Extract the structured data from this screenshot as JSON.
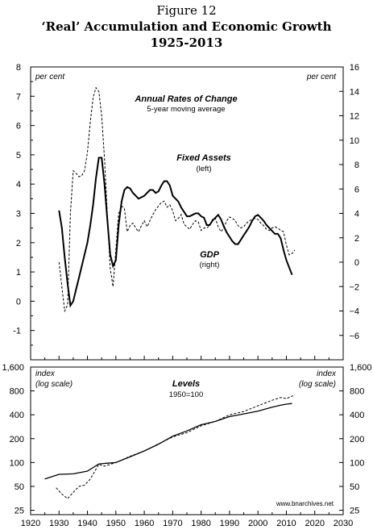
{
  "figure": {
    "label": "Figure 12",
    "title": "‘Real’ Accumulation and Economic Growth",
    "years": "1925-2013"
  },
  "chart_data": [
    {
      "type": "line",
      "title": "Annual Rates of Change",
      "subtitle": "5-year moving average",
      "left_axis_label": "per cent",
      "right_axis_label": "per cent",
      "left_ylim": [
        -2,
        8
      ],
      "right_ylim": [
        -8,
        16
      ],
      "left_ticks": [
        -1,
        0,
        1,
        2,
        3,
        4,
        5,
        6,
        7,
        8
      ],
      "right_ticks": [
        -6,
        -4,
        -2,
        0,
        2,
        4,
        6,
        8,
        10,
        12,
        14,
        16
      ],
      "xlim": [
        1920,
        2030
      ],
      "series": [
        {
          "name": "Fixed Assets",
          "name_sub": "(left)",
          "axis": "left",
          "style": "solid",
          "x": [
            1930,
            1931,
            1932,
            1933,
            1934,
            1935,
            1936,
            1937,
            1938,
            1939,
            1940,
            1941,
            1942,
            1943,
            1944,
            1945,
            1946,
            1947,
            1948,
            1949,
            1950,
            1951,
            1952,
            1953,
            1954,
            1955,
            1956,
            1957,
            1958,
            1959,
            1960,
            1961,
            1962,
            1963,
            1964,
            1965,
            1966,
            1967,
            1968,
            1969,
            1970,
            1971,
            1972,
            1973,
            1974,
            1975,
            1976,
            1977,
            1978,
            1979,
            1980,
            1981,
            1982,
            1983,
            1984,
            1985,
            1986,
            1987,
            1988,
            1989,
            1990,
            1991,
            1992,
            1993,
            1994,
            1995,
            1996,
            1997,
            1998,
            1999,
            2000,
            2001,
            2002,
            2003,
            2004,
            2005,
            2006,
            2007,
            2008,
            2009,
            2010,
            2011,
            2012
          ],
          "y": [
            3.1,
            2.5,
            1.5,
            0.6,
            -0.15,
            0.0,
            0.4,
            0.8,
            1.2,
            1.6,
            2.0,
            2.6,
            3.3,
            4.2,
            4.9,
            4.9,
            4.0,
            2.8,
            1.6,
            1.2,
            1.4,
            2.6,
            3.4,
            3.8,
            3.9,
            3.85,
            3.7,
            3.6,
            3.5,
            3.55,
            3.6,
            3.7,
            3.8,
            3.8,
            3.7,
            3.75,
            3.95,
            4.1,
            4.1,
            3.95,
            3.6,
            3.5,
            3.4,
            3.2,
            3.05,
            2.9,
            2.9,
            2.95,
            3.0,
            3.0,
            2.9,
            2.85,
            2.6,
            2.6,
            2.75,
            2.85,
            2.95,
            2.8,
            2.55,
            2.35,
            2.2,
            2.05,
            1.95,
            1.95,
            2.1,
            2.25,
            2.4,
            2.55,
            2.75,
            2.9,
            2.95,
            2.85,
            2.75,
            2.6,
            2.5,
            2.4,
            2.3,
            2.3,
            2.15,
            1.75,
            1.4,
            1.15,
            0.9
          ]
        },
        {
          "name": "GDP",
          "name_sub": "(right)",
          "axis": "right",
          "style": "dashed",
          "x": [
            1930,
            1931,
            1932,
            1933,
            1934,
            1935,
            1936,
            1937,
            1938,
            1939,
            1940,
            1941,
            1942,
            1943,
            1944,
            1945,
            1946,
            1947,
            1948,
            1949,
            1950,
            1951,
            1952,
            1953,
            1954,
            1955,
            1956,
            1957,
            1958,
            1959,
            1960,
            1961,
            1962,
            1963,
            1964,
            1965,
            1966,
            1967,
            1968,
            1969,
            1970,
            1971,
            1972,
            1973,
            1974,
            1975,
            1976,
            1977,
            1978,
            1979,
            1980,
            1981,
            1982,
            1983,
            1984,
            1985,
            1986,
            1987,
            1988,
            1989,
            1990,
            1991,
            1992,
            1993,
            1994,
            1995,
            1996,
            1997,
            1998,
            1999,
            2000,
            2001,
            2002,
            2003,
            2004,
            2005,
            2006,
            2007,
            2008,
            2009,
            2010,
            2011,
            2012,
            2013
          ],
          "y": [
            0.0,
            -2.0,
            -4.0,
            -3.5,
            4.0,
            7.5,
            7.3,
            7.0,
            7.1,
            7.5,
            9.0,
            11.5,
            13.5,
            14.3,
            14.0,
            12.0,
            8.5,
            4.0,
            -0.5,
            -2.0,
            1.0,
            4.0,
            4.6,
            4.4,
            2.5,
            3.0,
            3.2,
            2.8,
            2.5,
            3.0,
            3.4,
            2.9,
            3.4,
            3.9,
            4.3,
            4.6,
            4.9,
            5.0,
            4.5,
            4.7,
            4.2,
            3.4,
            3.6,
            3.9,
            3.1,
            2.9,
            2.7,
            3.1,
            3.4,
            3.3,
            2.6,
            2.8,
            2.8,
            3.0,
            3.5,
            3.6,
            2.9,
            2.5,
            2.8,
            3.4,
            3.7,
            3.6,
            3.4,
            3.0,
            2.8,
            2.9,
            3.2,
            3.4,
            3.5,
            3.6,
            3.5,
            3.2,
            3.0,
            2.7,
            2.6,
            2.8,
            2.9,
            2.8,
            2.6,
            2.5,
            1.4,
            0.6,
            0.7,
            1.0
          ]
        }
      ]
    },
    {
      "type": "line",
      "title": "Levels",
      "subtitle": "1950=100",
      "left_axis_label": "index",
      "left_axis_label2": "(log scale)",
      "right_axis_label": "index",
      "right_axis_label2": "(log scale)",
      "yscale": "log",
      "ylim": [
        22,
        1600
      ],
      "ticks": [
        25,
        50,
        100,
        200,
        400,
        800,
        1600
      ],
      "tick_labels": [
        "25",
        "50",
        "100",
        "200",
        "400",
        "800",
        "1,600"
      ],
      "xlim": [
        1920,
        2030
      ],
      "x_ticks": [
        1920,
        1930,
        1940,
        1950,
        1960,
        1970,
        1980,
        1990,
        2000,
        2010,
        2020,
        2030
      ],
      "source": "www.bnarchives.net",
      "series": [
        {
          "name": "Fixed Assets",
          "style": "solid",
          "x": [
            1925,
            1930,
            1935,
            1940,
            1944,
            1947,
            1950,
            1955,
            1960,
            1965,
            1970,
            1975,
            1980,
            1985,
            1990,
            1995,
            2000,
            2005,
            2008,
            2010,
            2012
          ],
          "y": [
            62,
            71,
            72,
            78,
            96,
            98,
            100,
            118,
            140,
            170,
            215,
            250,
            300,
            330,
            380,
            410,
            445,
            500,
            530,
            545,
            555
          ]
        },
        {
          "name": "GDP",
          "style": "dashed",
          "x": [
            1929,
            1931,
            1933,
            1935,
            1937,
            1939,
            1941,
            1944,
            1946,
            1948,
            1950,
            1955,
            1960,
            1965,
            1970,
            1975,
            1980,
            1985,
            1990,
            1995,
            2000,
            2005,
            2008,
            2010,
            2013
          ],
          "y": [
            48,
            40,
            35,
            42,
            50,
            52,
            62,
            95,
            90,
            95,
            100,
            120,
            140,
            172,
            210,
            238,
            290,
            330,
            400,
            440,
            520,
            610,
            660,
            640,
            710
          ]
        }
      ]
    }
  ]
}
